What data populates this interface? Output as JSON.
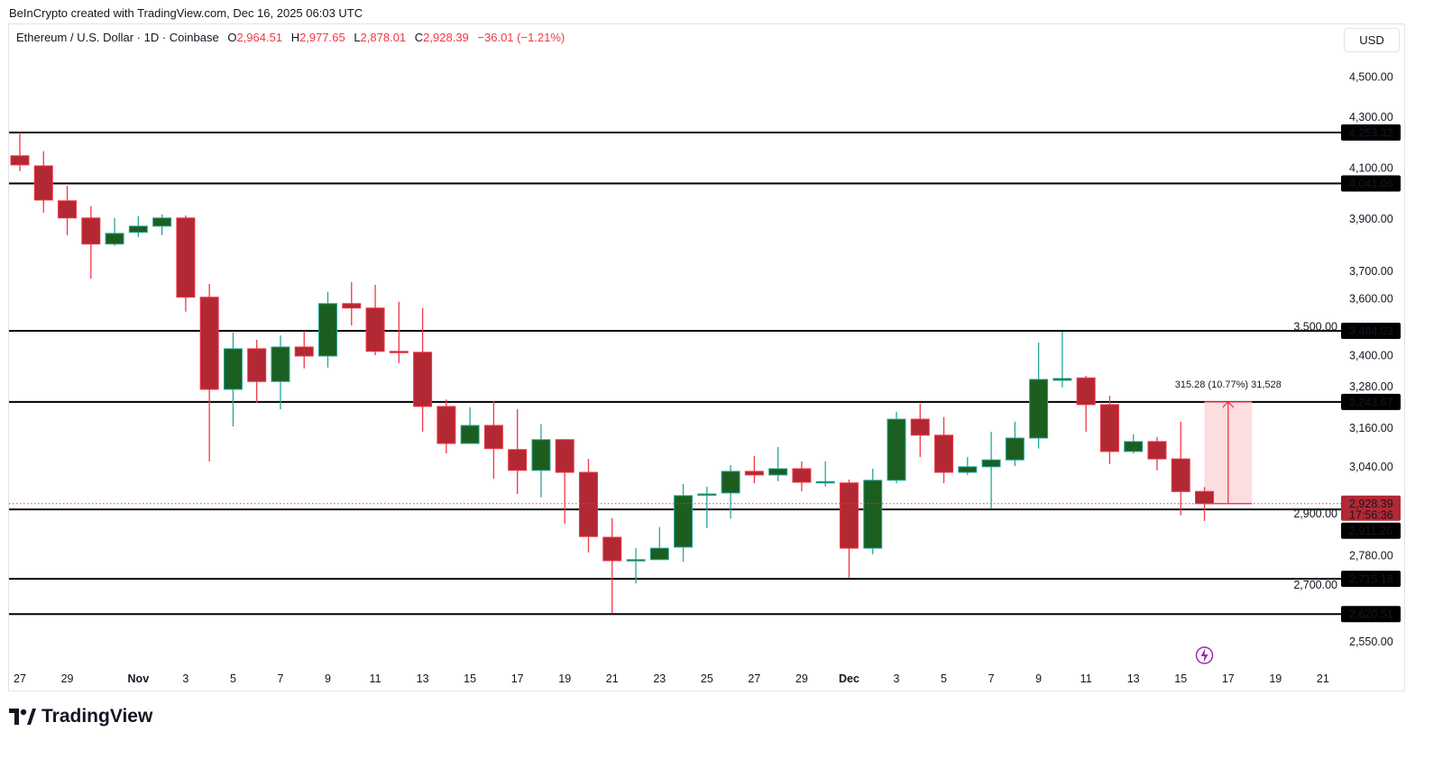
{
  "credit": "BeInCrypto created with TradingView.com, Dec 16, 2025 06:03 UTC",
  "legend": {
    "symbol": "Ethereum / U.S. Dollar · 1D · Coinbase",
    "open_key": "O",
    "open": "2,964.51",
    "high_key": "H",
    "high": "2,977.65",
    "low_key": "L",
    "low": "2,878.01",
    "close_key": "C",
    "close": "2,928.39",
    "change": "−36.01 (−1.21%)"
  },
  "currency_button": "USD",
  "footer_logo": "TradingView",
  "colors": {
    "up_body": "#1b5e20",
    "up_border": "#26a69a",
    "down_body": "#b22833",
    "down_border": "#f23645",
    "level_line": "#000000",
    "measure_fill": "#fcdde0",
    "price_label": "#b22833",
    "event_icon": "#9c27b0"
  },
  "icons": {
    "event": "lightning-icon",
    "logo": "tradingview-logo-icon"
  },
  "chart_data": {
    "type": "candlestick",
    "scale": "log",
    "ylim": [
      2500,
      4600
    ],
    "grid": false,
    "y_ticks": [
      {
        "value": 4500,
        "label": "4,500.00"
      },
      {
        "value": 4300,
        "label": "4,300.00"
      },
      {
        "value": 4100,
        "label": "4,100.00"
      },
      {
        "value": 3900,
        "label": "3,900.00"
      },
      {
        "value": 3700,
        "label": "3,700.00"
      },
      {
        "value": 3600,
        "label": "3,600.00"
      },
      {
        "value": 3500,
        "label": "3,500.00"
      },
      {
        "value": 3400,
        "label": "3,400.00"
      },
      {
        "value": 3280,
        "label": "3,280.00"
      },
      {
        "value": 3160,
        "label": "3,160.00"
      },
      {
        "value": 3040,
        "label": "3,040.00"
      },
      {
        "value": 2900,
        "label": "2,900.00"
      },
      {
        "value": 2780,
        "label": "2,780.00"
      },
      {
        "value": 2700,
        "label": "2,700.00"
      },
      {
        "value": 2550,
        "label": "2,550.00"
      }
    ],
    "x_ticks": [
      {
        "date": "2025-10-27",
        "label": "27"
      },
      {
        "date": "2025-10-29",
        "label": "29"
      },
      {
        "date": "2025-11-01",
        "label": "Nov",
        "bold": true
      },
      {
        "date": "2025-11-03",
        "label": "3"
      },
      {
        "date": "2025-11-05",
        "label": "5"
      },
      {
        "date": "2025-11-07",
        "label": "7"
      },
      {
        "date": "2025-11-09",
        "label": "9"
      },
      {
        "date": "2025-11-11",
        "label": "11"
      },
      {
        "date": "2025-11-13",
        "label": "13"
      },
      {
        "date": "2025-11-15",
        "label": "15"
      },
      {
        "date": "2025-11-17",
        "label": "17"
      },
      {
        "date": "2025-11-19",
        "label": "19"
      },
      {
        "date": "2025-11-21",
        "label": "21"
      },
      {
        "date": "2025-11-23",
        "label": "23"
      },
      {
        "date": "2025-11-25",
        "label": "25"
      },
      {
        "date": "2025-11-27",
        "label": "27"
      },
      {
        "date": "2025-11-29",
        "label": "29"
      },
      {
        "date": "2025-12-01",
        "label": "Dec",
        "bold": true
      },
      {
        "date": "2025-12-03",
        "label": "3"
      },
      {
        "date": "2025-12-05",
        "label": "5"
      },
      {
        "date": "2025-12-07",
        "label": "7"
      },
      {
        "date": "2025-12-09",
        "label": "9"
      },
      {
        "date": "2025-12-11",
        "label": "11"
      },
      {
        "date": "2025-12-13",
        "label": "13"
      },
      {
        "date": "2025-12-15",
        "label": "15"
      },
      {
        "date": "2025-12-17",
        "label": "17"
      },
      {
        "date": "2025-12-19",
        "label": "19"
      },
      {
        "date": "2025-12-21",
        "label": "21"
      }
    ],
    "columns": [
      "date",
      "open",
      "high",
      "low",
      "close"
    ],
    "candles": [
      [
        "2025-10-27",
        4155,
        4255,
        4091,
        4117
      ],
      [
        "2025-10-28",
        4113,
        4174,
        3924,
        3974
      ],
      [
        "2025-10-29",
        3971,
        4032,
        3836,
        3903
      ],
      [
        "2025-10-30",
        3903,
        3950,
        3672,
        3802
      ],
      [
        "2025-10-31",
        3802,
        3903,
        3795,
        3843
      ],
      [
        "2025-11-01",
        3847,
        3910,
        3829,
        3871
      ],
      [
        "2025-11-02",
        3871,
        3917,
        3836,
        3903
      ],
      [
        "2025-11-03",
        3903,
        3913,
        3552,
        3604
      ],
      [
        "2025-11-04",
        3604,
        3653,
        3055,
        3285
      ],
      [
        "2025-11-05",
        3285,
        3478,
        3165,
        3422
      ],
      [
        "2025-11-06",
        3422,
        3453,
        3241,
        3311
      ],
      [
        "2025-11-07",
        3311,
        3468,
        3220,
        3428
      ],
      [
        "2025-11-08",
        3428,
        3484,
        3355,
        3397
      ],
      [
        "2025-11-09",
        3397,
        3624,
        3358,
        3581
      ],
      [
        "2025-11-10",
        3581,
        3659,
        3503,
        3565
      ],
      [
        "2025-11-11",
        3565,
        3649,
        3400,
        3413
      ],
      [
        "2025-11-12",
        3413,
        3588,
        3373,
        3410
      ],
      [
        "2025-11-13",
        3410,
        3565,
        3148,
        3229
      ],
      [
        "2025-11-14",
        3229,
        3252,
        3080,
        3111
      ],
      [
        "2025-11-15",
        3111,
        3226,
        3111,
        3168
      ],
      [
        "2025-11-16",
        3168,
        3246,
        3003,
        3095
      ],
      [
        "2025-11-17",
        3092,
        3220,
        2957,
        3028
      ],
      [
        "2025-11-18",
        3028,
        3172,
        2947,
        3123
      ],
      [
        "2025-11-19",
        3123,
        3125,
        2870,
        3022
      ],
      [
        "2025-11-20",
        3022,
        3063,
        2788,
        2833
      ],
      [
        "2025-11-21",
        2831,
        2886,
        2623,
        2765
      ],
      [
        "2025-11-22",
        2765,
        2800,
        2702,
        2768
      ],
      [
        "2025-11-23",
        2768,
        2860,
        2768,
        2800
      ],
      [
        "2025-11-24",
        2803,
        2987,
        2762,
        2952
      ],
      [
        "2025-11-25",
        2955,
        2979,
        2857,
        2957
      ],
      [
        "2025-11-26",
        2960,
        3044,
        2885,
        3025
      ],
      [
        "2025-11-27",
        3025,
        3072,
        2989,
        3014
      ],
      [
        "2025-11-28",
        3014,
        3100,
        2995,
        3033
      ],
      [
        "2025-11-29",
        3033,
        3055,
        2965,
        2992
      ],
      [
        "2025-11-30",
        2990,
        3055,
        2979,
        2994
      ],
      [
        "2025-12-01",
        2990,
        3000,
        2718,
        2800
      ],
      [
        "2025-12-02",
        2800,
        3033,
        2783,
        2998
      ],
      [
        "2025-12-03",
        2998,
        3212,
        2989,
        3188
      ],
      [
        "2025-12-04",
        3188,
        3238,
        3069,
        3137
      ],
      [
        "2025-12-05",
        3137,
        3195,
        2989,
        3022
      ],
      [
        "2025-12-06",
        3022,
        3069,
        3014,
        3039
      ],
      [
        "2025-12-07",
        3039,
        3148,
        2914,
        3060
      ],
      [
        "2025-12-08",
        3060,
        3180,
        3041,
        3128
      ],
      [
        "2025-12-09",
        3128,
        3443,
        3095,
        3318
      ],
      [
        "2025-12-10",
        3315,
        3481,
        3291,
        3321
      ],
      [
        "2025-12-11",
        3323,
        3330,
        3148,
        3235
      ],
      [
        "2025-12-12",
        3235,
        3264,
        3047,
        3086
      ],
      [
        "2025-12-13",
        3086,
        3140,
        3080,
        3117
      ],
      [
        "2025-12-14",
        3117,
        3131,
        3028,
        3063
      ],
      [
        "2025-12-15",
        3063,
        3180,
        2894,
        2964
      ],
      [
        "2025-12-16",
        2964.51,
        2977.65,
        2878.01,
        2928.39
      ]
    ],
    "levels": [
      {
        "value": 4253.32,
        "label": "4,253.32"
      },
      {
        "value": 4041.06,
        "label": "4,041.06"
      },
      {
        "value": 3484.03,
        "label": "3,484.03"
      },
      {
        "value": 3243.67,
        "label": "3,243.67"
      },
      {
        "value": 2911.26,
        "label": "2,911.26"
      },
      {
        "value": 2715.18,
        "label": "2,715.18"
      },
      {
        "value": 2620.51,
        "label": "2,620.51"
      }
    ],
    "last_price": {
      "value": 2928.39,
      "label": "2,928.39",
      "countdown": "17:56:36"
    },
    "measure": {
      "from_date": "2025-12-16",
      "to_date": "2025-12-18",
      "from_price": 2928.39,
      "to_price": 3243.67,
      "label": "315.28 (10.77%) 31,528"
    },
    "event_marker_date": "2025-12-16"
  }
}
